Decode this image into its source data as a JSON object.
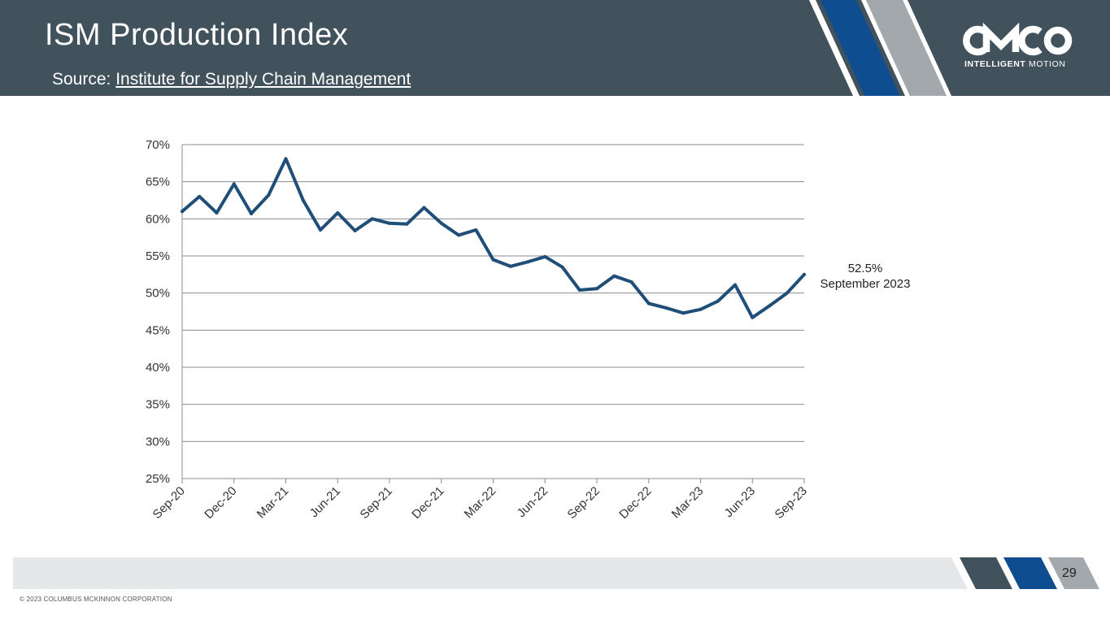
{
  "header": {
    "title": "ISM Production Index",
    "source_prefix": "Source: ",
    "source_link": "Institute for Supply Chain Management"
  },
  "logo": {
    "wordmark": "CMCO",
    "tagline_bold": "INTELLIGENT",
    "tagline_rest": "MOTION"
  },
  "colors": {
    "header_bg": "#42525d",
    "accent_blue": "#0e4d8f",
    "accent_gray": "#a2a8ac",
    "line": "#1f4e79"
  },
  "chart_data": {
    "type": "line",
    "title": "ISM Production Index",
    "xlabel": "",
    "ylabel": "",
    "ylim": [
      25,
      70
    ],
    "y_ticks": [
      25,
      30,
      35,
      40,
      45,
      50,
      55,
      60,
      65,
      70
    ],
    "y_tick_labels": [
      "25%",
      "30%",
      "35%",
      "40%",
      "45%",
      "50%",
      "55%",
      "60%",
      "65%",
      "70%"
    ],
    "x_tick_labels": [
      "Sep-20",
      "Dec-20",
      "Mar-21",
      "Jun-21",
      "Sep-21",
      "Dec-21",
      "Mar-22",
      "Jun-22",
      "Sep-22",
      "Dec-22",
      "Mar-23",
      "Jun-23",
      "Sep-23"
    ],
    "grid": true,
    "series": [
      {
        "name": "ISM Production Index",
        "x": [
          "Sep-20",
          "Oct-20",
          "Nov-20",
          "Dec-20",
          "Jan-21",
          "Feb-21",
          "Mar-21",
          "Apr-21",
          "May-21",
          "Jun-21",
          "Jul-21",
          "Aug-21",
          "Sep-21",
          "Oct-21",
          "Nov-21",
          "Dec-21",
          "Jan-22",
          "Feb-22",
          "Mar-22",
          "Apr-22",
          "May-22",
          "Jun-22",
          "Jul-22",
          "Aug-22",
          "Sep-22",
          "Oct-22",
          "Nov-22",
          "Dec-22",
          "Jan-23",
          "Feb-23",
          "Mar-23",
          "Apr-23",
          "May-23",
          "Jun-23",
          "Jul-23",
          "Aug-23",
          "Sep-23"
        ],
        "values": [
          61.0,
          63.0,
          60.8,
          64.7,
          60.7,
          63.2,
          68.1,
          62.5,
          58.5,
          60.8,
          58.4,
          60.0,
          59.4,
          59.3,
          61.5,
          59.4,
          57.8,
          58.5,
          54.5,
          53.6,
          54.2,
          54.9,
          53.5,
          50.4,
          50.6,
          52.3,
          51.5,
          48.6,
          48.0,
          47.3,
          47.8,
          48.9,
          51.1,
          46.7,
          48.3,
          50.0,
          52.5
        ]
      }
    ],
    "annotation": {
      "value_label": "52.5%",
      "date_label": "September 2023"
    }
  },
  "footer": {
    "page_number": "29",
    "copyright": "© 2023 COLUMBUS MCKINNON CORPORATION"
  }
}
